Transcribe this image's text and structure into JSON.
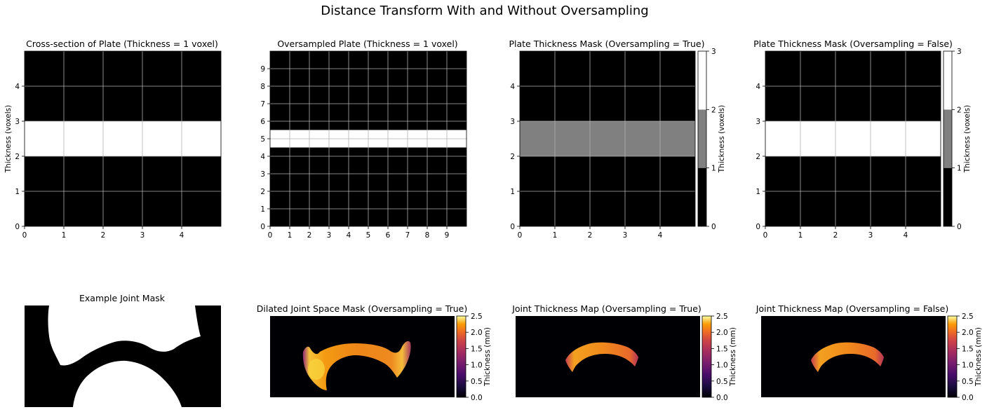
{
  "suptitle": "Distance Transform With and Without Oversampling",
  "panels": {
    "cross_section": {
      "title": "Cross-section of Plate (Thickness = 1 voxel)",
      "ylabel": "Thickness (voxels)"
    },
    "oversampled": {
      "title": "Oversampled Plate (Thickness = 1 voxel)"
    },
    "mask_true": {
      "title": "Plate Thickness Mask (Oversampling = True)",
      "cbar_label": "Thickness (voxels)"
    },
    "mask_false": {
      "title": "Plate Thickness Mask (Oversampling = False)",
      "cbar_label": "Thickness (voxels)"
    },
    "joint_mask": {
      "title": "Example Joint Mask"
    },
    "dilated": {
      "title": "Dilated Joint Space Mask (Oversampling = True)",
      "cbar_label": "Thickness (mm)"
    },
    "map_true": {
      "title": "Joint Thickness Map (Oversampling = True)",
      "cbar_label": "Thickness (mm)"
    },
    "map_false": {
      "title": "Joint Thickness Map (Oversampling = False)",
      "cbar_label": "Thickness (mm)"
    }
  },
  "colors": {
    "black": "#000000",
    "white": "#ffffff",
    "gray": "#808080",
    "grid": "#b0b0b0"
  },
  "chart_data": [
    {
      "type": "heatmap",
      "name": "Cross-section of Plate (Thickness = 1 voxel)",
      "xlim": [
        0,
        5
      ],
      "ylim": [
        0,
        5
      ],
      "xticks": [
        "0",
        "1",
        "2",
        "3",
        "4"
      ],
      "yticks": [
        "0",
        "1",
        "2",
        "3",
        "4"
      ],
      "ylabel": "Thickness (voxels)",
      "plate_band": [
        2,
        3
      ],
      "plate_value": 1,
      "background_value": 0,
      "grid": true
    },
    {
      "type": "heatmap",
      "name": "Oversampled Plate (Thickness = 1 voxel)",
      "xlim": [
        0,
        10
      ],
      "ylim": [
        0,
        10
      ],
      "xticks": [
        "0",
        "1",
        "2",
        "3",
        "4",
        "5",
        "6",
        "7",
        "8",
        "9"
      ],
      "yticks": [
        "0",
        "1",
        "2",
        "3",
        "4",
        "5",
        "6",
        "7",
        "8",
        "9"
      ],
      "plate_band": [
        4.5,
        5.5
      ],
      "plate_value": 1,
      "background_value": 0,
      "grid": true
    },
    {
      "type": "heatmap",
      "name": "Plate Thickness Mask (Oversampling = True)",
      "xlim": [
        0,
        5
      ],
      "ylim": [
        0,
        5
      ],
      "xticks": [
        "0",
        "1",
        "2",
        "3",
        "4"
      ],
      "yticks": [
        "0",
        "1",
        "2",
        "3",
        "4"
      ],
      "plate_band": [
        2,
        3
      ],
      "plate_value": 1,
      "background_value": 0,
      "grid": true,
      "colorbar": {
        "label": "Thickness (voxels)",
        "ticks": [
          "0",
          "1",
          "2",
          "3"
        ],
        "range": [
          0,
          3
        ]
      }
    },
    {
      "type": "heatmap",
      "name": "Plate Thickness Mask (Oversampling = False)",
      "xlim": [
        0,
        5
      ],
      "ylim": [
        0,
        5
      ],
      "xticks": [
        "0",
        "1",
        "2",
        "3",
        "4"
      ],
      "yticks": [
        "0",
        "1",
        "2",
        "3",
        "4"
      ],
      "plate_band": [
        2,
        3
      ],
      "plate_value": 2,
      "background_value": 0,
      "grid": true,
      "colorbar": {
        "label": "Thickness (voxels)",
        "ticks": [
          "0",
          "1",
          "2",
          "3"
        ],
        "range": [
          0,
          3
        ]
      }
    },
    {
      "type": "heatmap",
      "name": "Example Joint Mask",
      "binary": true
    },
    {
      "type": "heatmap",
      "name": "Dilated Joint Space Mask (Oversampling = True)",
      "colormap": "inferno",
      "colorbar": {
        "label": "Thickness (mm)",
        "ticks": [
          "0.0",
          "0.5",
          "1.0",
          "1.5",
          "2.0",
          "2.5"
        ],
        "range": [
          0,
          2.5
        ]
      }
    },
    {
      "type": "heatmap",
      "name": "Joint Thickness Map (Oversampling = True)",
      "colormap": "inferno",
      "colorbar": {
        "label": "Thickness (mm)",
        "ticks": [
          "0.0",
          "0.5",
          "1.0",
          "1.5",
          "2.0",
          "2.5"
        ],
        "range": [
          0,
          2.5
        ]
      }
    },
    {
      "type": "heatmap",
      "name": "Joint Thickness Map (Oversampling = False)",
      "colormap": "inferno",
      "colorbar": {
        "label": "Thickness (mm)",
        "ticks": [
          "0.0",
          "0.5",
          "1.0",
          "1.5",
          "2.0",
          "2.5"
        ],
        "range": [
          0,
          2.5
        ]
      }
    }
  ]
}
